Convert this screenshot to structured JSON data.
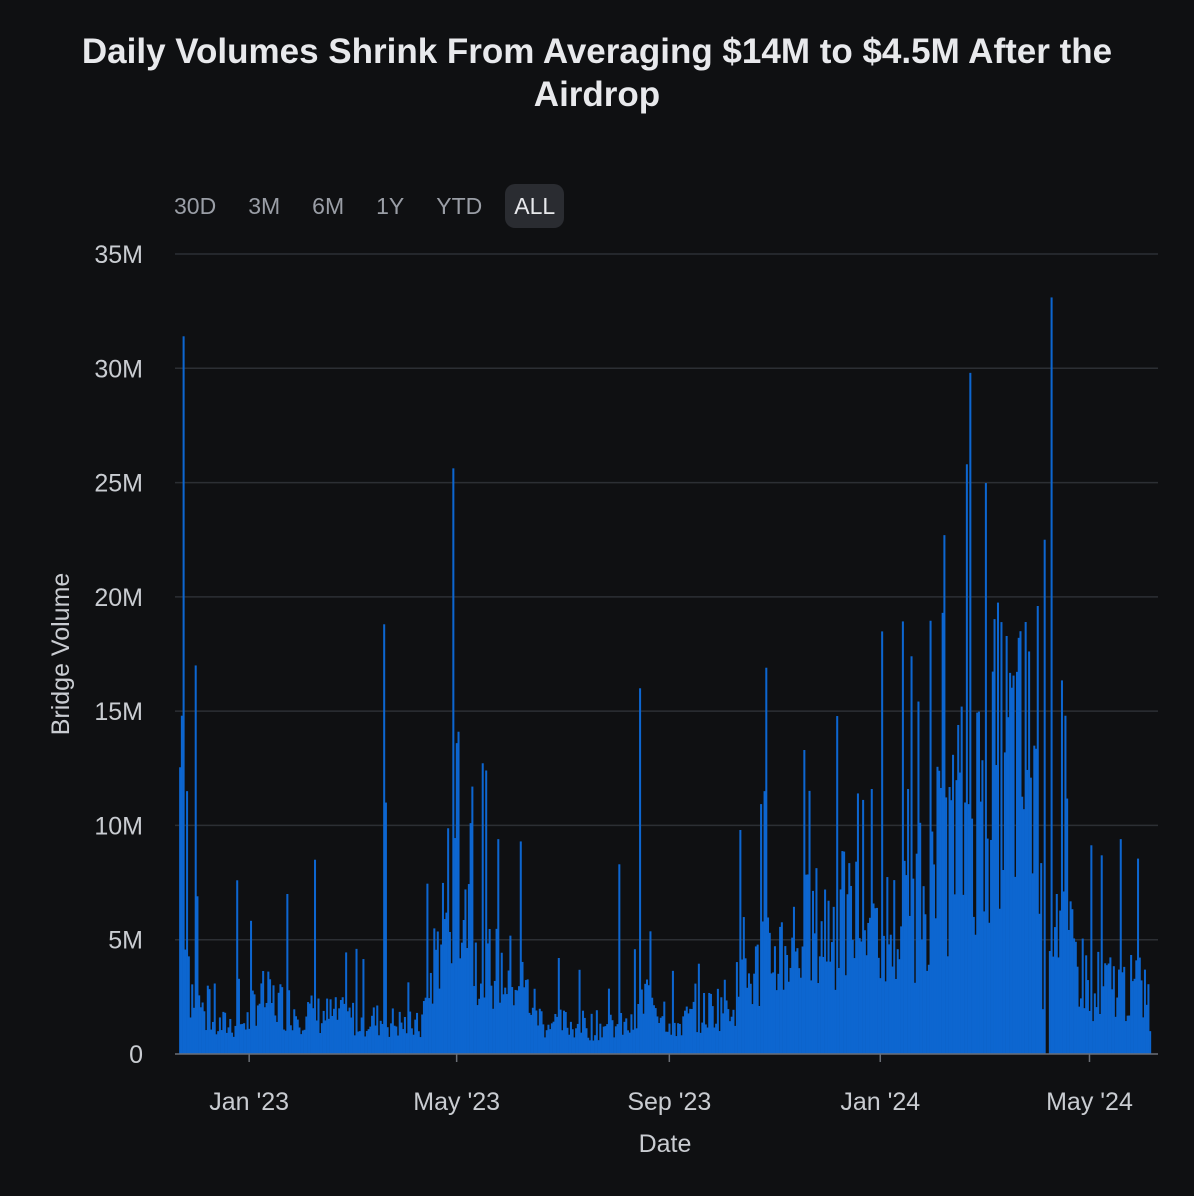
{
  "title": "Daily Volumes Shrink From Averaging $14M to $4.5M After the Airdrop",
  "range_buttons": [
    "30D",
    "3M",
    "6M",
    "1Y",
    "YTD",
    "ALL"
  ],
  "active_range": "ALL",
  "colors": {
    "bar": "#0d66d0",
    "grid": "#2c2f34",
    "background": "#0f1012"
  },
  "chart_data": {
    "type": "bar",
    "xlabel": "Date",
    "ylabel": "Bridge Volume",
    "ylim": [
      0,
      35000000
    ],
    "yticks": [
      0,
      5000000,
      10000000,
      15000000,
      20000000,
      25000000,
      30000000,
      35000000
    ],
    "ytick_labels": [
      "0",
      "5M",
      "10M",
      "15M",
      "20M",
      "25M",
      "30M",
      "35M"
    ],
    "x_start": "2022-11-22",
    "x_end": "2024-06-05",
    "xticks": [
      "2023-01-01",
      "2023-05-01",
      "2023-09-01",
      "2024-01-01",
      "2024-05-01"
    ],
    "xtick_labels": [
      "Jan '23",
      "May '23",
      "Sep '23",
      "Jan '24",
      "May '24"
    ],
    "period_averages": [
      {
        "label": "Before airdrop",
        "value": 14000000
      },
      {
        "label": "After airdrop",
        "value": 4500000
      }
    ],
    "key_points": [
      {
        "date": "2022-11-23",
        "value": 14800000
      },
      {
        "date": "2022-11-24",
        "value": 31400000
      },
      {
        "date": "2022-11-26",
        "value": 11500000
      },
      {
        "date": "2022-12-01",
        "value": 17000000
      },
      {
        "date": "2022-12-02",
        "value": 6900000
      },
      {
        "date": "2022-12-25",
        "value": 7600000
      },
      {
        "date": "2023-01-23",
        "value": 7000000
      },
      {
        "date": "2023-02-08",
        "value": 8500000
      },
      {
        "date": "2023-03-20",
        "value": 18800000
      },
      {
        "date": "2023-03-21",
        "value": 11000000
      },
      {
        "date": "2023-05-01",
        "value": 13600000
      },
      {
        "date": "2023-05-02",
        "value": 14100000
      },
      {
        "date": "2023-05-09",
        "value": 10100000
      },
      {
        "date": "2023-05-10",
        "value": 11700000
      },
      {
        "date": "2023-05-25",
        "value": 9400000
      },
      {
        "date": "2023-06-07",
        "value": 9300000
      },
      {
        "date": "2023-08-03",
        "value": 8300000
      },
      {
        "date": "2023-08-15",
        "value": 16000000
      },
      {
        "date": "2023-10-12",
        "value": 9800000
      },
      {
        "date": "2023-10-26",
        "value": 11500000
      },
      {
        "date": "2023-10-27",
        "value": 16900000
      },
      {
        "date": "2023-11-18",
        "value": 13300000
      },
      {
        "date": "2023-12-19",
        "value": 11400000
      },
      {
        "date": "2024-01-19",
        "value": 17400000
      },
      {
        "date": "2024-02-07",
        "value": 22700000
      },
      {
        "date": "2024-02-17",
        "value": 15200000
      },
      {
        "date": "2024-02-20",
        "value": 25800000
      },
      {
        "date": "2024-02-22",
        "value": 29800000
      },
      {
        "date": "2024-03-25",
        "value": 18900000
      },
      {
        "date": "2024-04-01",
        "value": 19600000
      },
      {
        "date": "2024-04-05",
        "value": 22500000
      },
      {
        "date": "2024-04-09",
        "value": 33100000
      },
      {
        "date": "2024-04-12",
        "value": 7000000
      },
      {
        "date": "2024-04-17",
        "value": 14800000
      },
      {
        "date": "2024-05-19",
        "value": 9400000
      },
      {
        "date": "2024-06-05",
        "value": 1000000
      }
    ]
  }
}
